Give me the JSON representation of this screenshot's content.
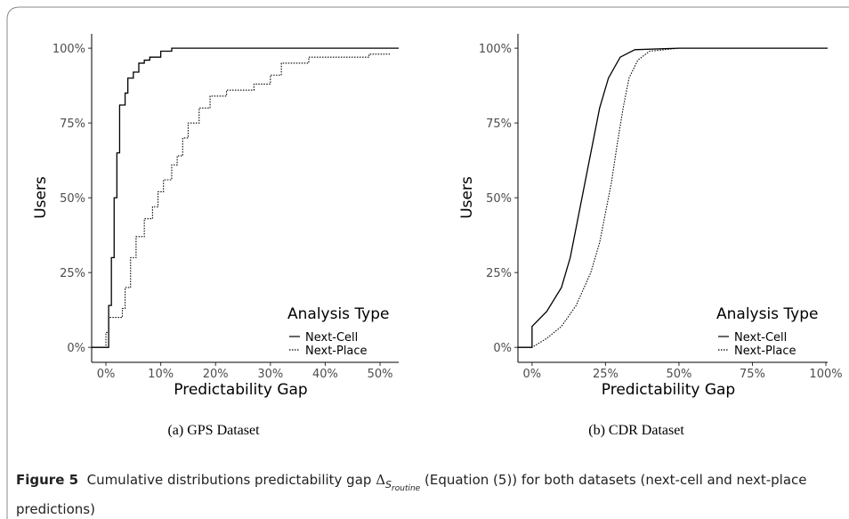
{
  "chart_data": [
    {
      "type": "line",
      "subcaption": "(a)  GPS Dataset",
      "x_label": "Predictability Gap",
      "y_label": "Users",
      "xlim": [
        -2.6,
        53.4
      ],
      "ylim": [
        -5,
        104.8
      ],
      "xticks": [
        {
          "value": 0,
          "label": "0%"
        },
        {
          "value": 10,
          "label": "10%"
        },
        {
          "value": 20,
          "label": "20%"
        },
        {
          "value": 30,
          "label": "30%"
        },
        {
          "value": 40,
          "label": "40%"
        },
        {
          "value": 50,
          "label": "50%"
        }
      ],
      "yticks": [
        {
          "value": 0,
          "label": "0%"
        },
        {
          "value": 25,
          "label": "25%"
        },
        {
          "value": 50,
          "label": "50%"
        },
        {
          "value": 75,
          "label": "75%"
        },
        {
          "value": 100,
          "label": "100%"
        }
      ],
      "legend_title": "Analysis Type",
      "legend_position": "bottom-right",
      "series": [
        {
          "name": "Next-Cell",
          "color": "#000000",
          "linetype": "solid",
          "x": [
            -2.6,
            0.5,
            0.5,
            1,
            1,
            1.5,
            1.5,
            2,
            2,
            2.5,
            2.5,
            3.5,
            3.5,
            4,
            4,
            5,
            5,
            6,
            6,
            7,
            7,
            8,
            8,
            10,
            10,
            12,
            12,
            53.4
          ],
          "values": [
            0,
            0,
            14,
            14,
            30,
            30,
            50,
            50,
            65,
            65,
            81,
            81,
            85,
            85,
            90,
            90,
            92,
            92,
            95,
            95,
            96,
            96,
            97,
            97,
            99,
            99,
            100,
            100
          ]
        },
        {
          "name": "Next-Place",
          "color": "#000000",
          "linetype": "dotted",
          "x": [
            -2.6,
            0,
            0,
            0.5,
            0.5,
            3,
            3,
            3.5,
            3.5,
            4.5,
            4.5,
            5.5,
            5.5,
            7,
            7,
            8.5,
            8.5,
            9.5,
            9.5,
            10.5,
            10.5,
            12,
            12,
            13,
            13,
            14,
            14,
            15,
            15,
            17,
            17,
            19,
            19,
            22,
            22,
            27,
            27,
            30,
            30,
            32,
            32,
            37,
            37,
            48,
            48,
            52
          ],
          "values": [
            0,
            0,
            5,
            5,
            10,
            10,
            13,
            13,
            20,
            20,
            30,
            30,
            37,
            37,
            43,
            43,
            47,
            47,
            52,
            52,
            56,
            56,
            61,
            61,
            64,
            64,
            70,
            70,
            75,
            75,
            80,
            80,
            84,
            84,
            86,
            86,
            88,
            88,
            91,
            91,
            95,
            95,
            97,
            97,
            98,
            98
          ]
        }
      ]
    },
    {
      "type": "line",
      "subcaption": "(b)  CDR Dataset",
      "x_label": "Predictability Gap",
      "y_label": "Users",
      "xlim": [
        -4.8,
        100.6
      ],
      "ylim": [
        -5,
        104.8
      ],
      "xticks": [
        {
          "value": 0,
          "label": "0%"
        },
        {
          "value": 25,
          "label": "25%"
        },
        {
          "value": 50,
          "label": "50%"
        },
        {
          "value": 75,
          "label": "75%"
        },
        {
          "value": 100,
          "label": "100%"
        }
      ],
      "yticks": [
        {
          "value": 0,
          "label": "0%"
        },
        {
          "value": 25,
          "label": "25%"
        },
        {
          "value": 50,
          "label": "50%"
        },
        {
          "value": 75,
          "label": "75%"
        },
        {
          "value": 100,
          "label": "100%"
        }
      ],
      "legend_title": "Analysis Type",
      "legend_position": "bottom-right",
      "series": [
        {
          "name": "Next-Cell",
          "color": "#000000",
          "linetype": "solid",
          "x": [
            -4.8,
            0,
            0,
            5,
            10,
            13,
            15,
            17,
            19,
            21,
            23,
            26,
            30,
            35,
            50,
            100.6
          ],
          "values": [
            0,
            0,
            7,
            12,
            20,
            30,
            40,
            50,
            60,
            70,
            80,
            90,
            97,
            99.5,
            100,
            100
          ]
        },
        {
          "name": "Next-Place",
          "color": "#000000",
          "linetype": "dotted",
          "x": [
            -4.8,
            0,
            5,
            10,
            15,
            20,
            23,
            25,
            27,
            29,
            31,
            33,
            36,
            40,
            50,
            100.6
          ],
          "values": [
            0,
            0,
            3,
            7,
            14,
            25,
            35,
            45,
            55,
            68,
            80,
            90,
            96,
            99,
            100,
            100
          ]
        }
      ]
    }
  ],
  "caption": {
    "label": "Figure 5",
    "text": "Cumulative distributions predictability gap",
    "symbol": "Δ",
    "subscript": "S",
    "subsubscript": "routine",
    "text_after": "(Equation (5)) for both datasets (next-cell and next-place predictions)"
  }
}
